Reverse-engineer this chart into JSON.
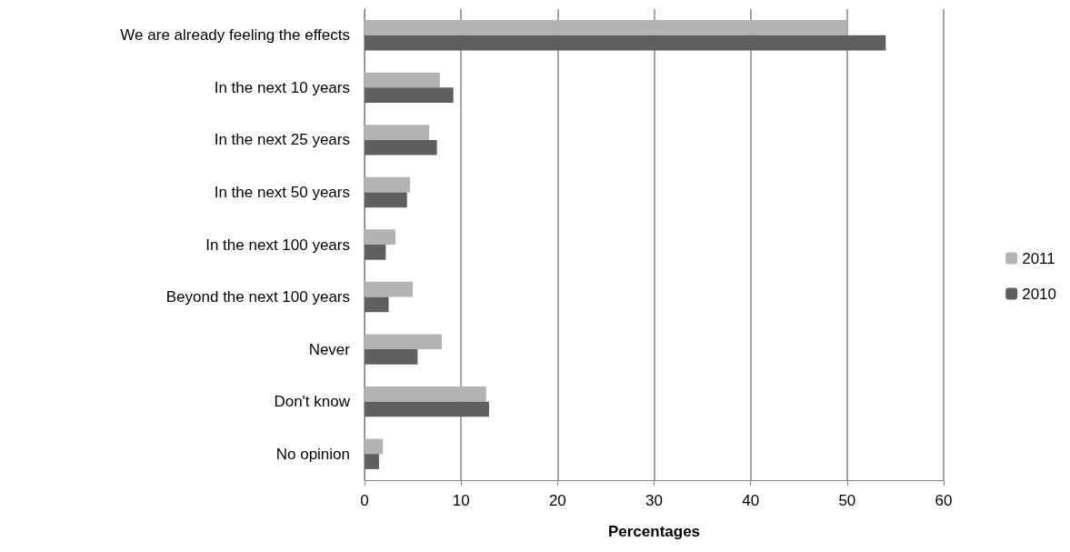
{
  "chart_data": {
    "type": "bar",
    "orientation": "horizontal",
    "xlabel": "Percentages",
    "categories": [
      "We are already feeling the effects",
      "In the next 10 years",
      "In the next 25 years",
      "In the next 50 years",
      "In the next 100 years",
      "Beyond the next 100 years",
      "Never",
      "Don't know",
      "No opinion"
    ],
    "series": [
      {
        "name": "2011",
        "color": "#b3b3b3",
        "values": [
          50,
          7.8,
          6.7,
          4.7,
          3.2,
          5.0,
          8.0,
          12.6,
          1.9
        ]
      },
      {
        "name": "2010",
        "color": "#5f5f5f",
        "values": [
          54,
          9.2,
          7.5,
          4.4,
          2.2,
          2.5,
          5.5,
          12.9,
          1.5
        ]
      }
    ],
    "xlim": [
      0,
      60
    ],
    "xticks": [
      0,
      10,
      20,
      30,
      40,
      50,
      60
    ],
    "grid": "x",
    "legend": "right"
  }
}
